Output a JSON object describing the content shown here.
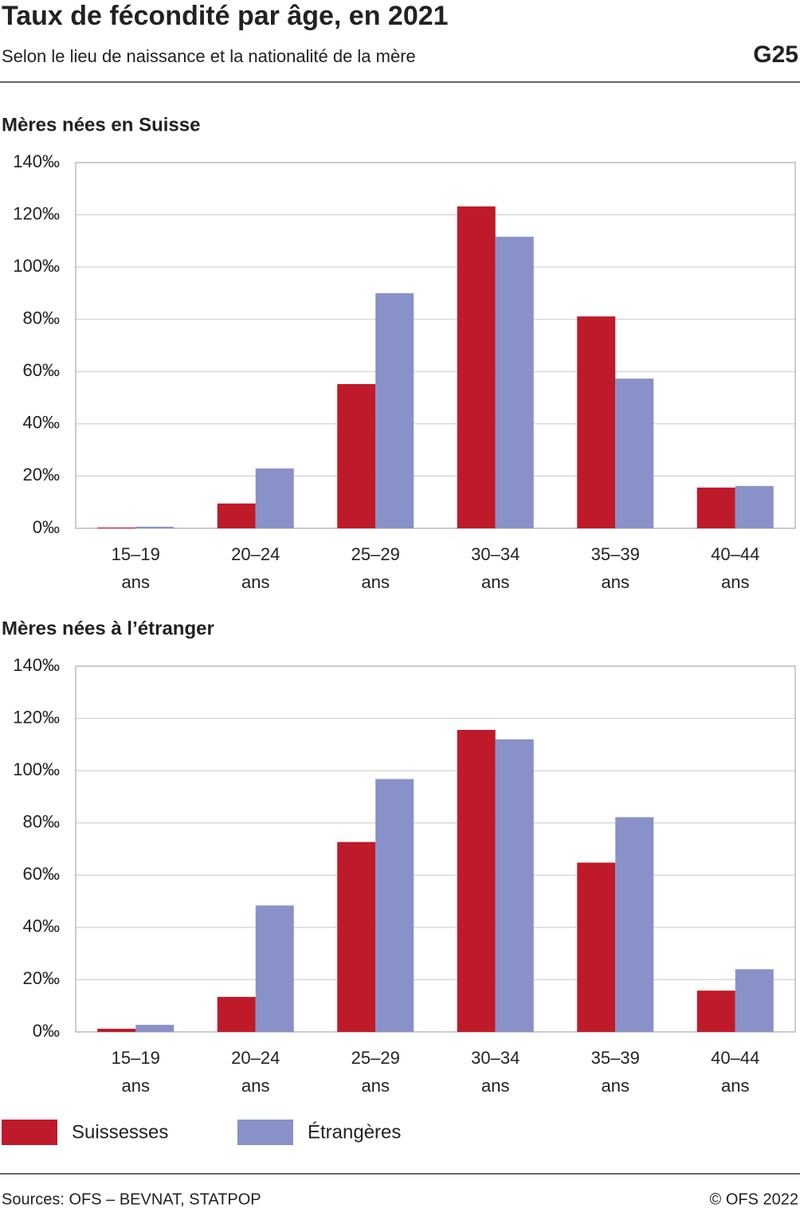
{
  "header": {
    "title": "Taux de fécondité par âge, en 2021",
    "subtitle": "Selon le lieu de naissance et la nationalité de la mère",
    "code": "G25"
  },
  "legend": [
    {
      "name": "Suissesses",
      "color": "#be1a2a"
    },
    {
      "name": "Étrangères",
      "color": "#8891c8"
    }
  ],
  "chart_data": [
    {
      "type": "bar",
      "title": "Mères nées en Suisse",
      "categories": [
        "15–19 ans",
        "20–24 ans",
        "25–29 ans",
        "30–34 ans",
        "35–39 ans",
        "40–44 ans"
      ],
      "series": [
        {
          "color": "#be1a2a",
          "values": [
            0.3,
            9.5,
            55.2,
            123.2,
            81.1,
            15.6
          ]
        },
        {
          "color": "#8891c8",
          "values": [
            0.6,
            22.9,
            90,
            111.6,
            57.3,
            16.2
          ]
        }
      ],
      "ylim": [
        0,
        140
      ],
      "yticks": [
        {
          "value": 0,
          "label": "0‰"
        },
        {
          "value": 20,
          "label": "20‰"
        },
        {
          "value": 40,
          "label": "40‰"
        },
        {
          "value": 60,
          "label": "60‰"
        },
        {
          "value": 80,
          "label": "80‰"
        },
        {
          "value": 100,
          "label": "100‰"
        },
        {
          "value": 120,
          "label": "120‰"
        },
        {
          "value": 140,
          "label": "140‰"
        }
      ],
      "grid": true
    },
    {
      "type": "bar",
      "title": "Mères nées à l’étranger",
      "categories": [
        "15–19 ans",
        "20–24 ans",
        "25–29 ans",
        "30–34 ans",
        "35–39 ans",
        "40–44 ans"
      ],
      "series": [
        {
          "color": "#be1a2a",
          "values": [
            1.2,
            13.4,
            72.7,
            115.6,
            64.8,
            15.8
          ]
        },
        {
          "color": "#8891c8",
          "values": [
            2.7,
            48.4,
            96.8,
            112,
            82.2,
            24
          ]
        }
      ],
      "ylim": [
        0,
        140
      ],
      "yticks": [
        {
          "value": 0,
          "label": "0‰"
        },
        {
          "value": 20,
          "label": "20‰"
        },
        {
          "value": 40,
          "label": "40‰"
        },
        {
          "value": 60,
          "label": "60‰"
        },
        {
          "value": 80,
          "label": "80‰"
        },
        {
          "value": 100,
          "label": "100‰"
        },
        {
          "value": 120,
          "label": "120‰"
        },
        {
          "value": 140,
          "label": "140‰"
        }
      ],
      "grid": true
    }
  ],
  "footer": {
    "source": "Sources: OFS – BEVNAT, STATPOP",
    "copyright": "© OFS 2022"
  }
}
